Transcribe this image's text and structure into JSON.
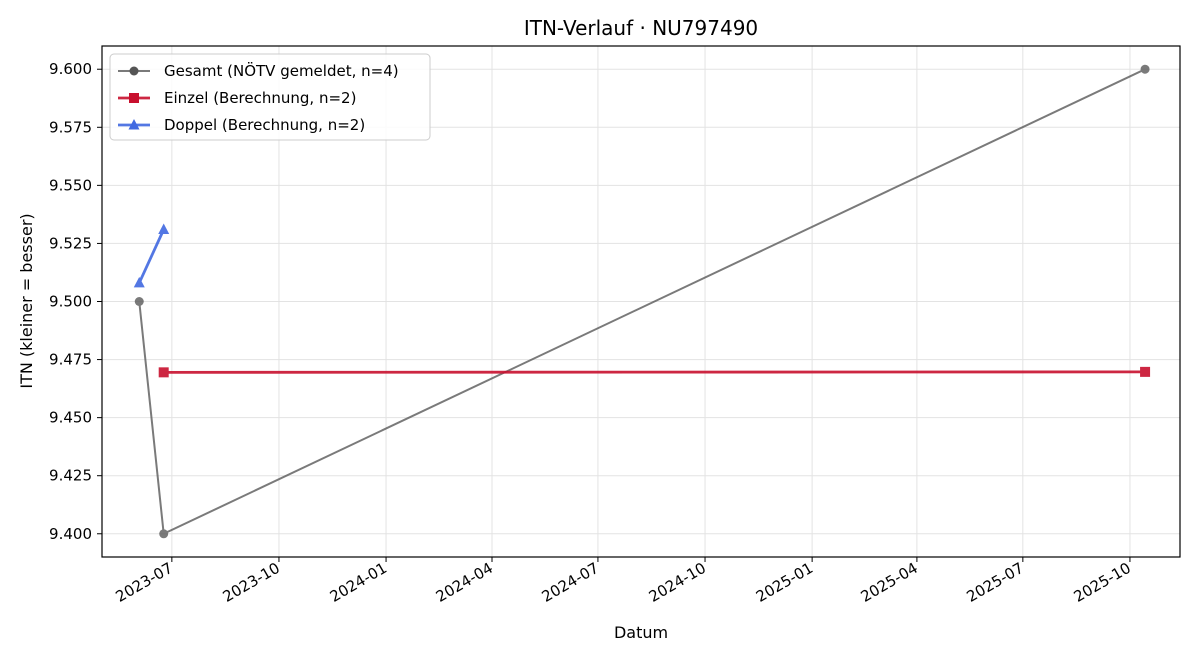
{
  "chart_data": {
    "type": "line",
    "title": "ITN-Verlauf · NU797490",
    "xlabel": "Datum",
    "ylabel": "ITN  (kleiner = besser)",
    "xlim": [
      "2023-05-02",
      "2025-11-13"
    ],
    "ylim": [
      9.39,
      9.61
    ],
    "y_ticks": [
      9.4,
      9.425,
      9.45,
      9.475,
      9.5,
      9.525,
      9.55,
      9.575,
      9.6
    ],
    "y_tick_labels": [
      "9.400",
      "9.425",
      "9.450",
      "9.475",
      "9.500",
      "9.525",
      "9.550",
      "9.575",
      "9.600"
    ],
    "x_ticks": [
      "2023-07-01",
      "2023-10-01",
      "2024-01-01",
      "2024-04-01",
      "2024-07-01",
      "2024-10-01",
      "2025-01-01",
      "2025-04-01",
      "2025-07-01",
      "2025-10-01"
    ],
    "x_tick_labels": [
      "2023-07",
      "2023-10",
      "2024-01",
      "2024-04",
      "2024-07",
      "2024-10",
      "2025-01",
      "2025-04",
      "2025-07",
      "2025-10"
    ],
    "grid": true,
    "legend_position": "upper-left",
    "series": [
      {
        "name": "Gesamt (NÖTV gemeldet, n=4)",
        "color": "#555555",
        "marker": "circle",
        "points": [
          {
            "x": "2023-06-03",
            "y": 9.5
          },
          {
            "x": "2023-06-24",
            "y": 9.4
          },
          {
            "x": "2025-10-14",
            "y": 9.6
          }
        ]
      },
      {
        "name": "Einzel (Berechnung, n=2)",
        "color": "#c8102e",
        "marker": "square",
        "points": [
          {
            "x": "2023-06-24",
            "y": 9.4695
          },
          {
            "x": "2025-10-14",
            "y": 9.4697
          }
        ]
      },
      {
        "name": "Doppel (Berechnung, n=2)",
        "color": "#4169e1",
        "marker": "triangle",
        "points": [
          {
            "x": "2023-06-03",
            "y": 9.508
          },
          {
            "x": "2023-06-24",
            "y": 9.531
          }
        ]
      }
    ]
  }
}
